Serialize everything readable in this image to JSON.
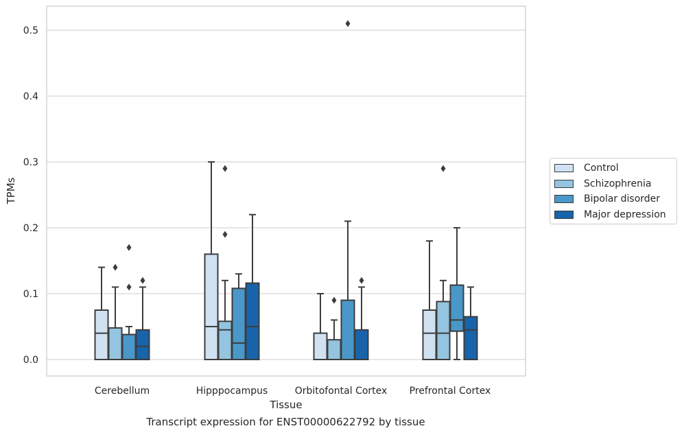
{
  "caption": "Transcript expression for ENST00000622792 by tissue",
  "chart_data": {
    "type": "box",
    "xlabel": "Tissue",
    "ylabel": "TPMs",
    "categories": [
      "Cerebellum",
      "Hipppocampus",
      "Orbitofontal Cortex",
      "Prefrontal Cortex"
    ],
    "yticks": [
      "0.0",
      "0.1",
      "0.2",
      "0.3",
      "0.4",
      "0.5"
    ],
    "ylim": [
      -0.025,
      0.537
    ],
    "grid": true,
    "legend_position": "right",
    "series": [
      {
        "name": "Control",
        "color": "#d0e1f2",
        "boxes": [
          {
            "min": 0,
            "q1": 0,
            "median": 0.04,
            "q3": 0.075,
            "max": 0.14,
            "outliers": []
          },
          {
            "min": 0,
            "q1": 0,
            "median": 0.05,
            "q3": 0.16,
            "max": 0.3,
            "outliers": []
          },
          {
            "min": 0,
            "q1": 0,
            "median": 0.0,
            "q3": 0.04,
            "max": 0.1,
            "outliers": []
          },
          {
            "min": 0,
            "q1": 0,
            "median": 0.04,
            "q3": 0.075,
            "max": 0.18,
            "outliers": []
          }
        ]
      },
      {
        "name": "Schizophrenia",
        "color": "#94c4df",
        "boxes": [
          {
            "min": 0,
            "q1": 0,
            "median": 0.0,
            "q3": 0.048,
            "max": 0.11,
            "outliers": [
              0.14
            ]
          },
          {
            "min": 0,
            "q1": 0,
            "median": 0.045,
            "q3": 0.058,
            "max": 0.12,
            "outliers": [
              0.19,
              0.29
            ]
          },
          {
            "min": 0,
            "q1": 0,
            "median": 0.0,
            "q3": 0.03,
            "max": 0.06,
            "outliers": [
              0.09
            ]
          },
          {
            "min": 0,
            "q1": 0,
            "median": 0.04,
            "q3": 0.088,
            "max": 0.12,
            "outliers": [
              0.29
            ]
          }
        ]
      },
      {
        "name": "Bipolar disorder",
        "color": "#4a98c9",
        "boxes": [
          {
            "min": 0,
            "q1": 0,
            "median": 0.0,
            "q3": 0.038,
            "max": 0.05,
            "outliers": [
              0.11,
              0.17
            ]
          },
          {
            "min": 0,
            "q1": 0,
            "median": 0.025,
            "q3": 0.108,
            "max": 0.13,
            "outliers": []
          },
          {
            "min": 0,
            "q1": 0,
            "median": 0.0,
            "q3": 0.09,
            "max": 0.21,
            "outliers": [
              0.51
            ]
          },
          {
            "min": 0,
            "q1": 0.043,
            "median": 0.06,
            "q3": 0.113,
            "max": 0.2,
            "outliers": []
          }
        ]
      },
      {
        "name": "Major depression",
        "color": "#1764ab",
        "boxes": [
          {
            "min": 0,
            "q1": 0,
            "median": 0.02,
            "q3": 0.045,
            "max": 0.11,
            "outliers": [
              0.12
            ]
          },
          {
            "min": 0,
            "q1": 0,
            "median": 0.05,
            "q3": 0.116,
            "max": 0.22,
            "outliers": []
          },
          {
            "min": 0,
            "q1": 0,
            "median": 0.0,
            "q3": 0.045,
            "max": 0.11,
            "outliers": [
              0.12
            ]
          },
          {
            "min": 0,
            "q1": 0,
            "median": 0.045,
            "q3": 0.065,
            "max": 0.11,
            "outliers": []
          }
        ]
      }
    ]
  }
}
